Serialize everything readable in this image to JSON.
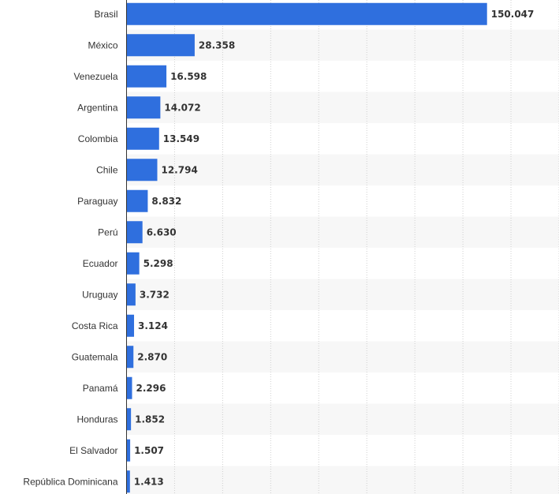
{
  "chart_data": {
    "type": "bar",
    "orientation": "horizontal",
    "categories": [
      "Brasil",
      "México",
      "Venezuela",
      "Argentina",
      "Colombia",
      "Chile",
      "Paraguay",
      "Perú",
      "Ecuador",
      "Uruguay",
      "Costa Rica",
      "Guatemala",
      "Panamá",
      "Honduras",
      "El Salvador",
      "República Dominicana"
    ],
    "values": [
      150.047,
      28.358,
      16.598,
      14.072,
      13.549,
      12.794,
      8.832,
      6.63,
      5.298,
      3.732,
      3.124,
      2.87,
      2.296,
      1.852,
      1.507,
      1.413
    ],
    "value_labels": [
      "150.047",
      "28.358",
      "16.598",
      "14.072",
      "13.549",
      "12.794",
      "8.832",
      "6.630",
      "5.298",
      "3.732",
      "3.124",
      "2.870",
      "2.296",
      "1.852",
      "1.507",
      "1.413"
    ],
    "xlim": [
      0,
      180
    ],
    "grid": true,
    "bar_color": "#2f6fde",
    "title": "",
    "xlabel": "",
    "ylabel": ""
  }
}
